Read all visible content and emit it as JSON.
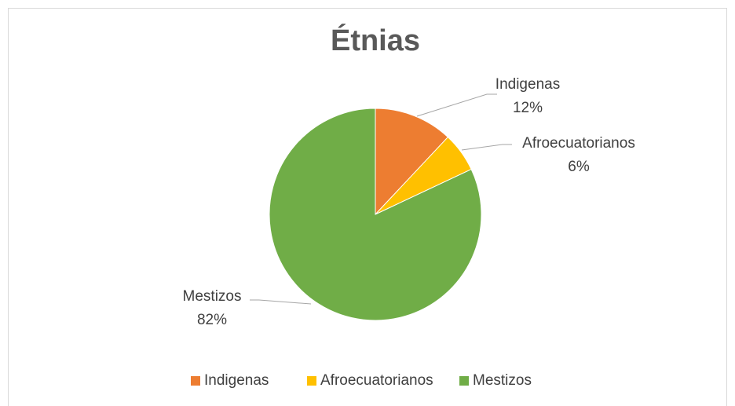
{
  "chart_data": {
    "type": "pie",
    "title": "Étnias",
    "categories": [
      "Indigenas",
      "Afroecuatorianos",
      "Mestizos"
    ],
    "values": [
      12,
      6,
      82
    ],
    "value_labels": [
      "12%",
      "6%",
      "82%"
    ],
    "colors": [
      "#ED7D31",
      "#FFC000",
      "#70AD47"
    ],
    "legend": "bottom"
  }
}
